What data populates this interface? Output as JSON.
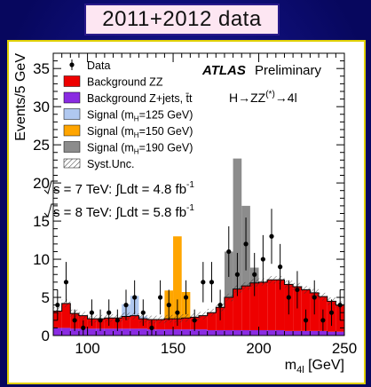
{
  "header": {
    "title": "2011+2012 data"
  },
  "colors": {
    "background_zz": "#ee0000",
    "background_zjets": "#8a2be2",
    "signal_125": "#b0c8f0",
    "signal_150": "#ffa500",
    "signal_190": "#8c8c8c",
    "frame": "#e0d000",
    "slide_bg": "#0a0a7a"
  },
  "chart_data": {
    "type": "bar",
    "title": "",
    "xlabel": "m",
    "xlabel_sub": "4l",
    "xlabel_unit": " [GeV]",
    "ylabel": "Events/5 GeV",
    "xlim": [
      80,
      250
    ],
    "ylim": [
      0,
      37
    ],
    "x_ticks": [
      100,
      150,
      200,
      250
    ],
    "y_ticks": [
      0,
      5,
      10,
      15,
      20,
      25,
      30,
      35
    ],
    "bin_width": 5,
    "bins": [
      80,
      85,
      90,
      95,
      100,
      105,
      110,
      115,
      120,
      125,
      130,
      135,
      140,
      145,
      150,
      155,
      160,
      165,
      170,
      175,
      180,
      185,
      190,
      195,
      200,
      205,
      210,
      215,
      220,
      225,
      230,
      235,
      240,
      245
    ],
    "series": [
      {
        "name": "Background Z+jets, tt̄",
        "values": [
          1.0,
          1.0,
          0.9,
          0.9,
          0.9,
          0.9,
          0.9,
          0.9,
          0.9,
          0.9,
          0.9,
          0.8,
          0.8,
          0.8,
          0.8,
          0.8,
          0.8,
          0.8,
          0.7,
          0.7,
          0.7,
          0.7,
          0.7,
          0.7,
          0.7,
          0.7,
          0.7,
          0.6,
          0.6,
          0.6,
          0.6,
          0.6,
          0.5,
          0.5
        ]
      },
      {
        "name": "Background ZZ",
        "values": [
          2.2,
          3.2,
          2.0,
          1.7,
          1.3,
          1.3,
          1.4,
          1.4,
          1.6,
          1.7,
          1.3,
          1.3,
          1.3,
          1.4,
          1.4,
          1.5,
          1.6,
          1.8,
          2.3,
          3.0,
          4.3,
          5.4,
          5.8,
          6.2,
          6.3,
          6.6,
          6.6,
          6.1,
          5.8,
          5.4,
          5.0,
          4.5,
          4.0,
          3.5
        ]
      },
      {
        "name": "Signal (m_H=125 GeV)",
        "values": [
          0,
          0,
          0,
          0,
          0,
          0,
          0,
          0,
          1.6,
          2.6,
          0.3,
          0,
          0,
          0,
          0,
          0,
          0,
          0,
          0,
          0,
          0,
          0,
          0,
          0,
          0,
          0,
          0,
          0,
          0,
          0,
          0,
          0,
          0,
          0
        ]
      },
      {
        "name": "Signal (m_H=150 GeV)",
        "values": [
          0,
          0,
          0,
          0,
          0,
          0,
          0,
          0,
          0,
          0,
          0,
          0,
          0,
          3.7,
          10.8,
          3.4,
          0,
          0,
          0,
          0,
          0,
          0,
          0,
          0,
          0,
          0,
          0,
          0,
          0,
          0,
          0,
          0,
          0,
          0
        ]
      },
      {
        "name": "Signal (m_H=190 GeV)",
        "values": [
          0,
          0,
          0,
          0,
          0,
          0,
          0,
          0,
          0,
          0,
          0,
          0,
          0,
          0,
          0,
          0,
          0,
          0,
          0,
          0,
          6.0,
          17.1,
          10.5,
          2.0,
          0,
          0,
          0,
          0,
          0,
          0,
          0,
          0,
          0,
          0
        ]
      }
    ],
    "data_points": {
      "name": "Data",
      "x": [
        82.5,
        87.5,
        92.5,
        97.5,
        102.5,
        107.5,
        112.5,
        117.5,
        122.5,
        127.5,
        132.5,
        137.5,
        142.5,
        147.5,
        152.5,
        157.5,
        162.5,
        167.5,
        172.5,
        177.5,
        182.5,
        187.5,
        192.5,
        197.5,
        202.5,
        207.5,
        212.5,
        217.5,
        222.5,
        227.5,
        232.5,
        237.5,
        242.5,
        247.5
      ],
      "y": [
        4,
        7,
        2,
        1,
        3,
        2,
        3,
        2,
        4,
        5,
        3,
        1,
        5,
        4,
        3,
        5,
        2,
        7,
        7,
        4,
        11,
        8,
        12,
        8,
        10,
        13,
        9,
        5,
        6,
        2,
        5,
        2,
        3,
        4
      ]
    },
    "legend": {
      "placement": "top-left",
      "entries": [
        {
          "label": "Data",
          "kind": "marker"
        },
        {
          "label": "Background ZZ",
          "kind": "box",
          "color": "#ee0000"
        },
        {
          "label": "Background Z+jets, t̄t",
          "kind": "box",
          "color": "#8a2be2"
        },
        {
          "label": "Signal (mₕ=125 GeV)",
          "kind": "box",
          "color": "#b0c8f0",
          "text": "Signal (m",
          "sub": "H",
          "tail": "=125 GeV)"
        },
        {
          "label": "Signal (mₕ=150 GeV)",
          "kind": "box",
          "color": "#ffa500",
          "text": "Signal (m",
          "sub": "H",
          "tail": "=150 GeV)"
        },
        {
          "label": "Signal (mₕ=190 GeV)",
          "kind": "box",
          "color": "#8c8c8c",
          "text": "Signal (m",
          "sub": "H",
          "tail": "=190 GeV)"
        },
        {
          "label": "Syst.Unc.",
          "kind": "hatch"
        }
      ]
    },
    "annotations": {
      "atlas": "ATLAS",
      "preliminary": "Preliminary",
      "channel": "H→ZZ",
      "channel_sup": "(*)",
      "channel_tail": "→4l",
      "lumi_7": "s = 7 TeV: ∫Ldt = 4.8 fb",
      "lumi_8": "s = 8 TeV: ∫Ldt = 5.8 fb",
      "lumi_sup": "-1"
    }
  }
}
